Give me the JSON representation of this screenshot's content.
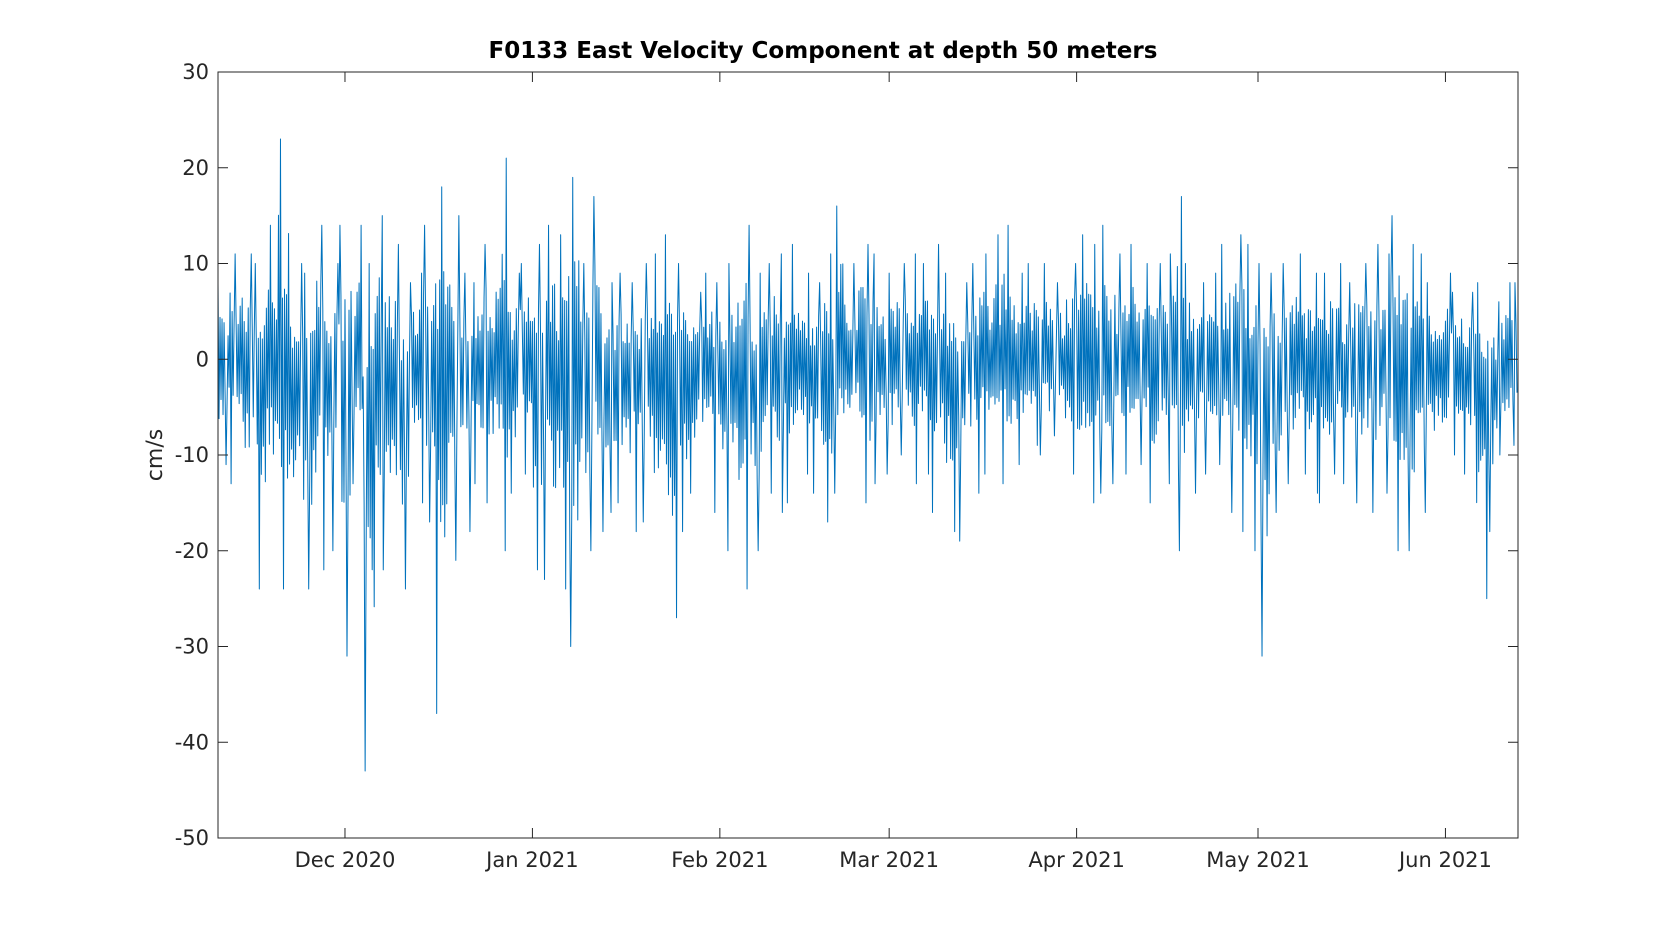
{
  "chart_data": {
    "type": "line",
    "title": "F0133 East Velocity Component at depth 50 meters",
    "xlabel": "",
    "ylabel": "cm/s",
    "xlim": [
      "2020-11-10",
      "2021-06-13"
    ],
    "ylim": [
      -50,
      30
    ],
    "grid": false,
    "y_ticks": [
      30,
      20,
      10,
      0,
      -10,
      -20,
      -30,
      -40,
      -50
    ],
    "x_ticks": [
      {
        "date": "2020-12-01",
        "label": "Dec 2020"
      },
      {
        "date": "2021-01-01",
        "label": "Jan 2021"
      },
      {
        "date": "2021-02-01",
        "label": "Feb 2021"
      },
      {
        "date": "2021-03-01",
        "label": "Mar 2021"
      },
      {
        "date": "2021-04-01",
        "label": "Apr 2021"
      },
      {
        "date": "2021-05-01",
        "label": "May 2021"
      },
      {
        "date": "2021-06-01",
        "label": "Jun 2021"
      }
    ],
    "series": [
      {
        "color": "#0072bd",
        "x": [
          "2020-11-10",
          "2020-11-12",
          "2020-11-14",
          "2020-11-16",
          "2020-11-18",
          "2020-11-20",
          "2020-11-22",
          "2020-11-24",
          "2020-11-26",
          "2020-11-28",
          "2020-11-30",
          "2020-12-02",
          "2020-12-04",
          "2020-12-06",
          "2020-12-08",
          "2020-12-10",
          "2020-12-12",
          "2020-12-14",
          "2020-12-16",
          "2020-12-18",
          "2020-12-20",
          "2020-12-22",
          "2020-12-24",
          "2020-12-26",
          "2020-12-28",
          "2020-12-30",
          "2021-01-01",
          "2021-01-03",
          "2021-01-05",
          "2021-01-07",
          "2021-01-09",
          "2021-01-11",
          "2021-01-13",
          "2021-01-15",
          "2021-01-17",
          "2021-01-19",
          "2021-01-21",
          "2021-01-23",
          "2021-01-25",
          "2021-01-27",
          "2021-01-29",
          "2021-01-31",
          "2021-02-02",
          "2021-02-04",
          "2021-02-06",
          "2021-02-08",
          "2021-02-10",
          "2021-02-12",
          "2021-02-14",
          "2021-02-16",
          "2021-02-18",
          "2021-02-20",
          "2021-02-22",
          "2021-02-24",
          "2021-02-26",
          "2021-02-28",
          "2021-03-02",
          "2021-03-04",
          "2021-03-06",
          "2021-03-08",
          "2021-03-10",
          "2021-03-12",
          "2021-03-14",
          "2021-03-16",
          "2021-03-18",
          "2021-03-20",
          "2021-03-22",
          "2021-03-24",
          "2021-03-26",
          "2021-03-28",
          "2021-03-30",
          "2021-04-01",
          "2021-04-03",
          "2021-04-05",
          "2021-04-07",
          "2021-04-09",
          "2021-04-11",
          "2021-04-13",
          "2021-04-15",
          "2021-04-17",
          "2021-04-19",
          "2021-04-21",
          "2021-04-23",
          "2021-04-25",
          "2021-04-27",
          "2021-04-29",
          "2021-05-01",
          "2021-05-03",
          "2021-05-05",
          "2021-05-07",
          "2021-05-09",
          "2021-05-11",
          "2021-05-13",
          "2021-05-15",
          "2021-05-17",
          "2021-05-19",
          "2021-05-21",
          "2021-05-23",
          "2021-05-25",
          "2021-05-27",
          "2021-05-29",
          "2021-05-31",
          "2021-06-02",
          "2021-06-04",
          "2021-06-06",
          "2021-06-08",
          "2021-06-10",
          "2021-06-12"
        ],
        "ymax": [
          8,
          11,
          11,
          10,
          14,
          23,
          10,
          9,
          14,
          10,
          14,
          14,
          10,
          15,
          12,
          8,
          9,
          14,
          18,
          15,
          9,
          8,
          12,
          21,
          9,
          10,
          12,
          14,
          13,
          19,
          10,
          17,
          8,
          9,
          8,
          10,
          11,
          13,
          10,
          7,
          9,
          8,
          10,
          14,
          9,
          10,
          11,
          12,
          9,
          8,
          11,
          16,
          10,
          12,
          11,
          9,
          10,
          11,
          10,
          12,
          9,
          8,
          10,
          11,
          13,
          14,
          9,
          10,
          10,
          8,
          10,
          13,
          12,
          14,
          11,
          12,
          10,
          10,
          11,
          17,
          10,
          8,
          9,
          12,
          13,
          12,
          10,
          9,
          10,
          11,
          9,
          9,
          10,
          8,
          10,
          12,
          11,
          15,
          12,
          11,
          8,
          9,
          7,
          7,
          8,
          6,
          8,
          8
        ],
        "ymin": [
          -11,
          -13,
          -16,
          -24,
          -18,
          -24,
          -20,
          -24,
          -22,
          -20,
          -31,
          -13,
          -43,
          -22,
          -21,
          -24,
          -15,
          -17,
          -37,
          -21,
          -18,
          -13,
          -15,
          -20,
          -14,
          -12,
          -22,
          -23,
          -24,
          -30,
          -20,
          -18,
          -16,
          -15,
          -18,
          -17,
          -20,
          -27,
          -18,
          -14,
          -12,
          -16,
          -20,
          -24,
          -20,
          -14,
          -16,
          -15,
          -12,
          -14,
          -17,
          -14,
          -10,
          -15,
          -13,
          -12,
          -10,
          -13,
          -12,
          -16,
          -18,
          -19,
          -14,
          -12,
          -13,
          -14,
          -11,
          -9,
          -10,
          -8,
          -12,
          -15,
          -15,
          -14,
          -13,
          -12,
          -11,
          -15,
          -13,
          -20,
          -14,
          -12,
          -11,
          -16,
          -18,
          -20,
          -31,
          -16,
          -13,
          -12,
          -14,
          -15,
          -12,
          -13,
          -15,
          -16,
          -14,
          -20,
          -20,
          -16,
          -13,
          -12,
          -10,
          -12,
          -25,
          -18,
          -10,
          -9
        ]
      }
    ]
  }
}
